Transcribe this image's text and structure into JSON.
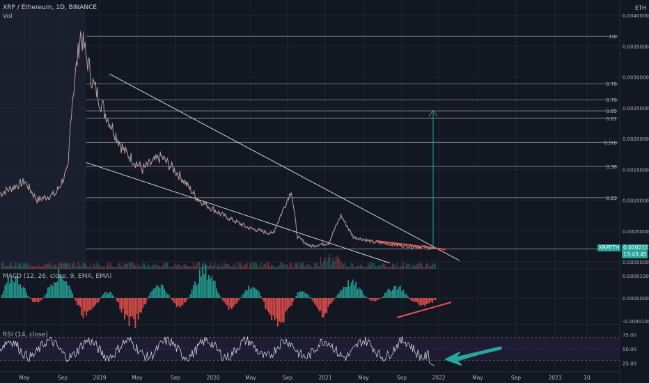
{
  "header": {
    "symbol_line": "XRP / Ethereum, 1D, BINANCE",
    "volume_label": "Vol"
  },
  "currency": "ETH",
  "colors": {
    "background": "#131722",
    "up": "#26a69a",
    "down": "#ef5350",
    "grid": "#1f2433",
    "line": "#d1d4dc",
    "highlight": "#ef5350",
    "target_arrow": "#26a69a",
    "rsi_arrow": "#26a69a"
  },
  "chart_data": [
    {
      "type": "line",
      "name_hidden": true,
      "x_ticks": [
        "May",
        "Sep",
        "2019",
        "May",
        "Sep",
        "2020",
        "May",
        "Sep",
        "2021",
        "May",
        "Sep",
        "2022",
        "May",
        "Sep",
        "2023",
        "10"
      ],
      "y_ticks": [
        "0.0040000",
        "0.0035000",
        "0.0030000",
        "0.0025000",
        "0.0020000",
        "0.0015000",
        "0.0010000",
        "0.0005000",
        "0.0000000"
      ],
      "ylim": [
        0,
        0.004
      ],
      "fib_levels": [
        {
          "label": "1(0",
          "value": 0.00366
        },
        {
          "label": "0.78",
          "value": 0.00289
        },
        {
          "label": "0.70",
          "value": 0.00263
        },
        {
          "label": "0.65",
          "value": 0.00245
        },
        {
          "label": "0.61",
          "value": 0.00233
        },
        {
          "label": "0.5(0",
          "value": 0.00194
        },
        {
          "label": "0.38",
          "value": 0.00155
        },
        {
          "label": "0.23",
          "value": 0.00104
        },
        {
          "label": "",
          "value": 0.00021
        }
      ],
      "last_price": "0.0002103",
      "symbol_tag": "XRPETH",
      "countdown": "13:43:45",
      "x": [
        0.0,
        0.04,
        0.06,
        0.09,
        0.11,
        0.115,
        0.13,
        0.15,
        0.17,
        0.2,
        0.23,
        0.26,
        0.29,
        0.32,
        0.36,
        0.4,
        0.44,
        0.47,
        0.48,
        0.5,
        0.53,
        0.55,
        0.57,
        0.59,
        0.6,
        0.62,
        0.64,
        0.66,
        0.69,
        0.7
      ],
      "values": [
        0.0011,
        0.0013,
        0.001,
        0.0011,
        0.0015,
        0.0025,
        0.0037,
        0.0029,
        0.0024,
        0.0018,
        0.0015,
        0.0017,
        0.0014,
        0.001,
        0.00075,
        0.00055,
        0.00045,
        0.00115,
        0.0004,
        0.00025,
        0.0003,
        0.00075,
        0.0004,
        0.00035,
        0.00032,
        0.0003,
        0.00027,
        0.00025,
        0.00023,
        0.00021
      ]
    },
    {
      "type": "bar",
      "title": "MACD (12, 26, close, 9, EMA, EMA)",
      "y_ticks": [
        "0.0000100",
        "0.0000000",
        "-0.0000100"
      ],
      "ylim": [
        -1.2e-05,
        1.2e-05
      ]
    },
    {
      "type": "line",
      "title": "RSI (14, close)",
      "y_ticks": [
        "75.00",
        "50.00",
        "25.00"
      ],
      "ylim": [
        15,
        90
      ],
      "bands": [
        70,
        30
      ],
      "last_value": 25
    }
  ]
}
